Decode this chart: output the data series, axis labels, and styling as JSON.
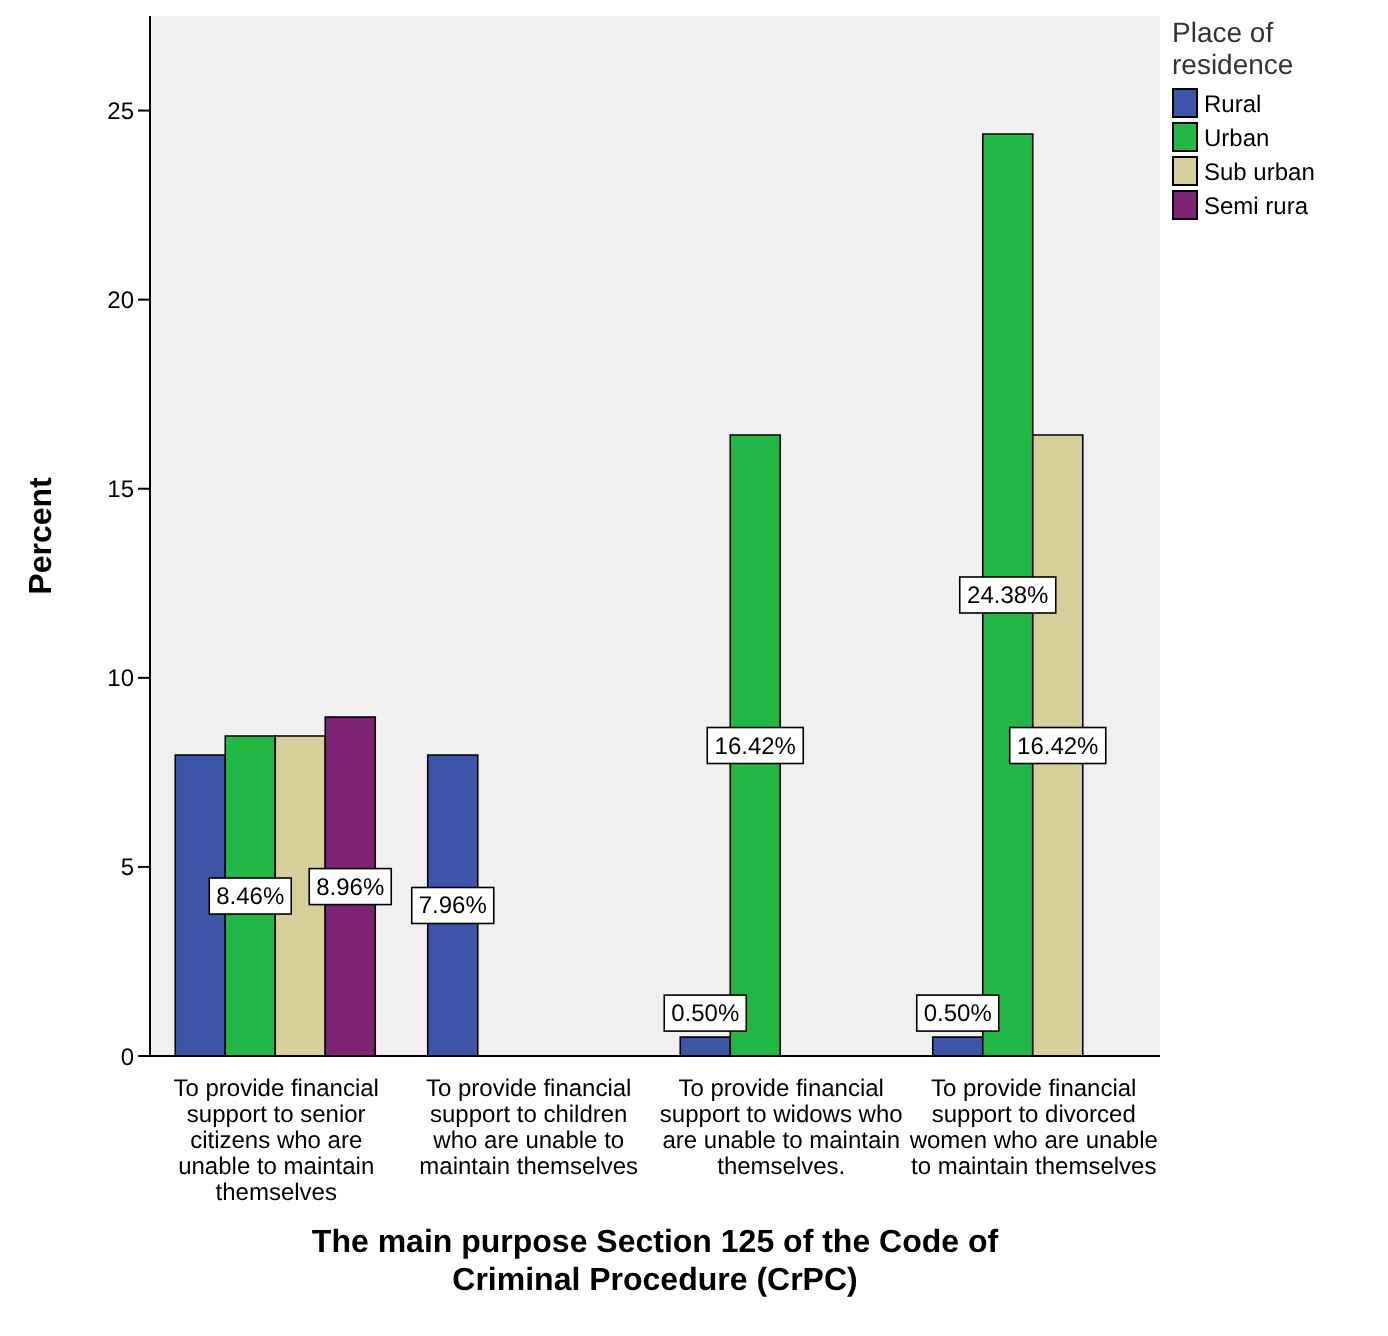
{
  "chart_data": {
    "type": "bar",
    "xlabel": "The main purpose Section 125 of the Code of Criminal Procedure (CrPC)",
    "ylabel": "Percent",
    "legend_title": "Place of residence",
    "legend": "top right",
    "grid": false,
    "categories": [
      "To provide financial support to senior citizens who are unable to maintain themselves",
      "To provide financial support to children who are unable to maintain themselves",
      "To provide financial support to widows who are unable to maintain themselves.",
      "To provide financial support to divorced women who are unable to maintain themselves"
    ],
    "ylim": [
      0,
      27.5
    ],
    "yticks": [
      0,
      5,
      10,
      15,
      20,
      25
    ],
    "series": [
      {
        "name": "Rural",
        "color": "#3d55a8",
        "values": [
          7.96,
          7.96,
          0.5,
          0.5
        ],
        "value_labels": [
          null,
          "7.96%",
          "0.50%",
          "0.50%"
        ]
      },
      {
        "name": "Urban",
        "color": "#22b845",
        "values": [
          8.46,
          null,
          16.42,
          24.38
        ],
        "value_labels": [
          "8.46%",
          null,
          "16.42%",
          "24.38%"
        ]
      },
      {
        "name": "Sub urban",
        "color": "#d6d09a",
        "values": [
          8.46,
          null,
          null,
          16.42
        ],
        "value_labels": [
          null,
          null,
          null,
          "16.42%"
        ]
      },
      {
        "name": "Semi rura",
        "color": "#7e2374",
        "values": [
          8.96,
          null,
          null,
          null
        ],
        "value_labels": [
          "8.96%",
          null,
          null,
          null
        ]
      }
    ]
  }
}
